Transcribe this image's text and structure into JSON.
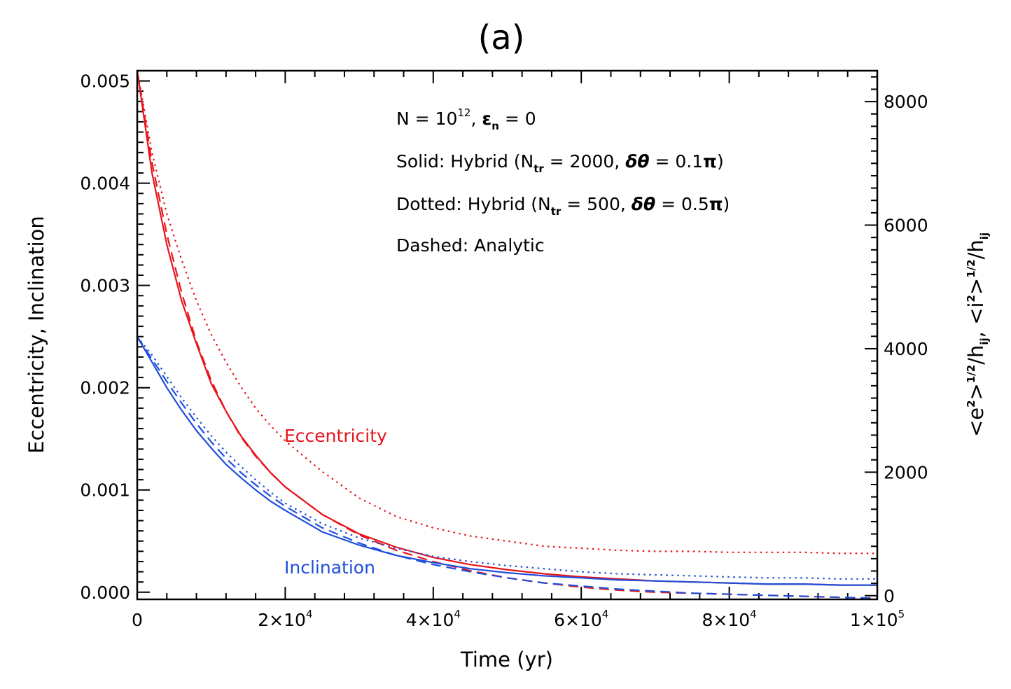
{
  "chart_data": {
    "type": "line",
    "title": "(a)",
    "xlabel": "Time (yr)",
    "ylabel_left": "Eccentricity, Inclination",
    "ylabel_right": {
      "parts": [
        "<e",
        "2",
        ">",
        "1/2",
        "/h",
        "ij",
        ", <i",
        "2",
        ">",
        "1/2",
        "/h",
        "ij"
      ]
    },
    "xlim": [
      0,
      100000
    ],
    "ylim_left": [
      -7e-05,
      0.0051
    ],
    "ylim_right": [
      -59,
      8500
    ],
    "x_ticks": [
      {
        "value": 0,
        "mant": "0",
        "exp": ""
      },
      {
        "value": 20000,
        "mant": "2×10",
        "exp": "4"
      },
      {
        "value": 40000,
        "mant": "4×10",
        "exp": "4"
      },
      {
        "value": 60000,
        "mant": "6×10",
        "exp": "4"
      },
      {
        "value": 80000,
        "mant": "8×10",
        "exp": "4"
      },
      {
        "value": 100000,
        "mant": "1×10",
        "exp": "5"
      }
    ],
    "y_left_ticks": [
      {
        "value": 0.0,
        "label": "0.000"
      },
      {
        "value": 0.001,
        "label": "0.001"
      },
      {
        "value": 0.002,
        "label": "0.002"
      },
      {
        "value": 0.003,
        "label": "0.003"
      },
      {
        "value": 0.004,
        "label": "0.004"
      },
      {
        "value": 0.005,
        "label": "0.005"
      }
    ],
    "y_right_ticks": [
      {
        "value": 0,
        "label": "0"
      },
      {
        "value": 2000,
        "label": "2000"
      },
      {
        "value": 4000,
        "label": "4000"
      },
      {
        "value": 6000,
        "label": "6000"
      },
      {
        "value": 8000,
        "label": "8000"
      }
    ],
    "annotations": {
      "line1": {
        "a": "N = 10",
        "a_sup": "12",
        "b": ", ",
        "eps": "ε",
        "eps_sub": "n",
        "c": " = 0"
      },
      "line2": {
        "a": "Solid: Hybrid (N",
        "a_sub": "tr",
        "b": " = 2000, ",
        "dt": "δθ",
        "c": " = 0.1",
        "pi": "π",
        "d": ")"
      },
      "line3": {
        "a": "Dotted: Hybrid (N",
        "a_sub": "tr",
        "b": " = 500, ",
        "dt": "δθ",
        "c": " = 0.5",
        "pi": "π",
        "d": ")"
      },
      "line4": "Dashed: Analytic"
    },
    "series_labels": {
      "eccentricity": {
        "text": "Eccentricity",
        "color": "#e8141c"
      },
      "inclination": {
        "text": "Inclination",
        "color": "#1f4fdb"
      }
    },
    "x": [
      0,
      2000,
      4000,
      6000,
      8000,
      10000,
      12000,
      14000,
      16000,
      18000,
      20000,
      25000,
      30000,
      35000,
      40000,
      45000,
      50000,
      55000,
      60000,
      65000,
      70000,
      75000,
      80000,
      85000,
      90000,
      95000,
      100000
    ],
    "series": [
      {
        "name": "Eccentricity",
        "style": "solid",
        "color": "#e8141c",
        "values": [
          0.0051,
          0.0041,
          0.0034,
          0.00285,
          0.00243,
          0.00204,
          0.00177,
          0.00153,
          0.00134,
          0.00117,
          0.00103,
          0.00076,
          0.00057,
          0.00044,
          0.00034,
          0.00027,
          0.00022,
          0.00018,
          0.00015,
          0.00013,
          0.00011,
          0.0001,
          9e-05,
          8e-05,
          8e-05,
          7e-05,
          7e-05
        ]
      },
      {
        "name": "Eccentricity",
        "style": "dashed",
        "color": "#e8141c",
        "values": [
          0.0051,
          0.0042,
          0.0035,
          0.00293,
          0.00245,
          0.00207,
          0.00177,
          0.00152,
          0.00133,
          0.00117,
          0.00103,
          0.00076,
          0.00056,
          0.00041,
          0.0003,
          0.00021,
          0.00014,
          9e-05,
          5e-05,
          2e-05,
          0.0,
          -1e-05,
          -2e-05,
          -3e-05,
          -4e-05,
          -5e-05,
          -6e-05
        ]
      },
      {
        "name": "Eccentricity",
        "style": "dotted",
        "color": "#e8141c",
        "values": [
          0.0051,
          0.0043,
          0.0037,
          0.00325,
          0.00285,
          0.00252,
          0.00225,
          0.00201,
          0.0018,
          0.00163,
          0.00148,
          0.00118,
          0.00092,
          0.00074,
          0.00063,
          0.00055,
          0.0005,
          0.00045,
          0.00043,
          0.00041,
          0.0004,
          0.0004,
          0.00039,
          0.00039,
          0.00039,
          0.00038,
          0.00038
        ]
      },
      {
        "name": "Inclination",
        "style": "solid",
        "color": "#1f4fdb",
        "values": [
          0.0025,
          0.00225,
          0.002,
          0.00178,
          0.00158,
          0.00141,
          0.00125,
          0.00112,
          0.001,
          0.00089,
          0.0008,
          0.00059,
          0.00046,
          0.00036,
          0.00029,
          0.00023,
          0.00019,
          0.00016,
          0.00014,
          0.00012,
          0.00011,
          0.0001,
          9e-05,
          8e-05,
          8e-05,
          7e-05,
          7e-05
        ]
      },
      {
        "name": "Inclination",
        "style": "dashed",
        "color": "#1f4fdb",
        "values": [
          0.0025,
          0.00228,
          0.00206,
          0.00185,
          0.00165,
          0.00147,
          0.00131,
          0.00117,
          0.00105,
          0.00094,
          0.00084,
          0.00063,
          0.00048,
          0.00036,
          0.00027,
          0.0002,
          0.00014,
          9e-05,
          6e-05,
          3e-05,
          1e-05,
          -1e-05,
          -2e-05,
          -3e-05,
          -4e-05,
          -5e-05,
          -6e-05
        ]
      },
      {
        "name": "Inclination",
        "style": "dotted",
        "color": "#1f4fdb",
        "values": [
          0.0025,
          0.00232,
          0.00211,
          0.0019,
          0.00171,
          0.00153,
          0.00137,
          0.00123,
          0.0011,
          0.00098,
          0.00087,
          0.00067,
          0.00053,
          0.00043,
          0.00035,
          0.0003,
          0.00026,
          0.00023,
          0.0002,
          0.00018,
          0.00017,
          0.00016,
          0.00015,
          0.00014,
          0.00014,
          0.00013,
          0.00013
        ]
      }
    ],
    "grid": false,
    "legend": "none"
  }
}
